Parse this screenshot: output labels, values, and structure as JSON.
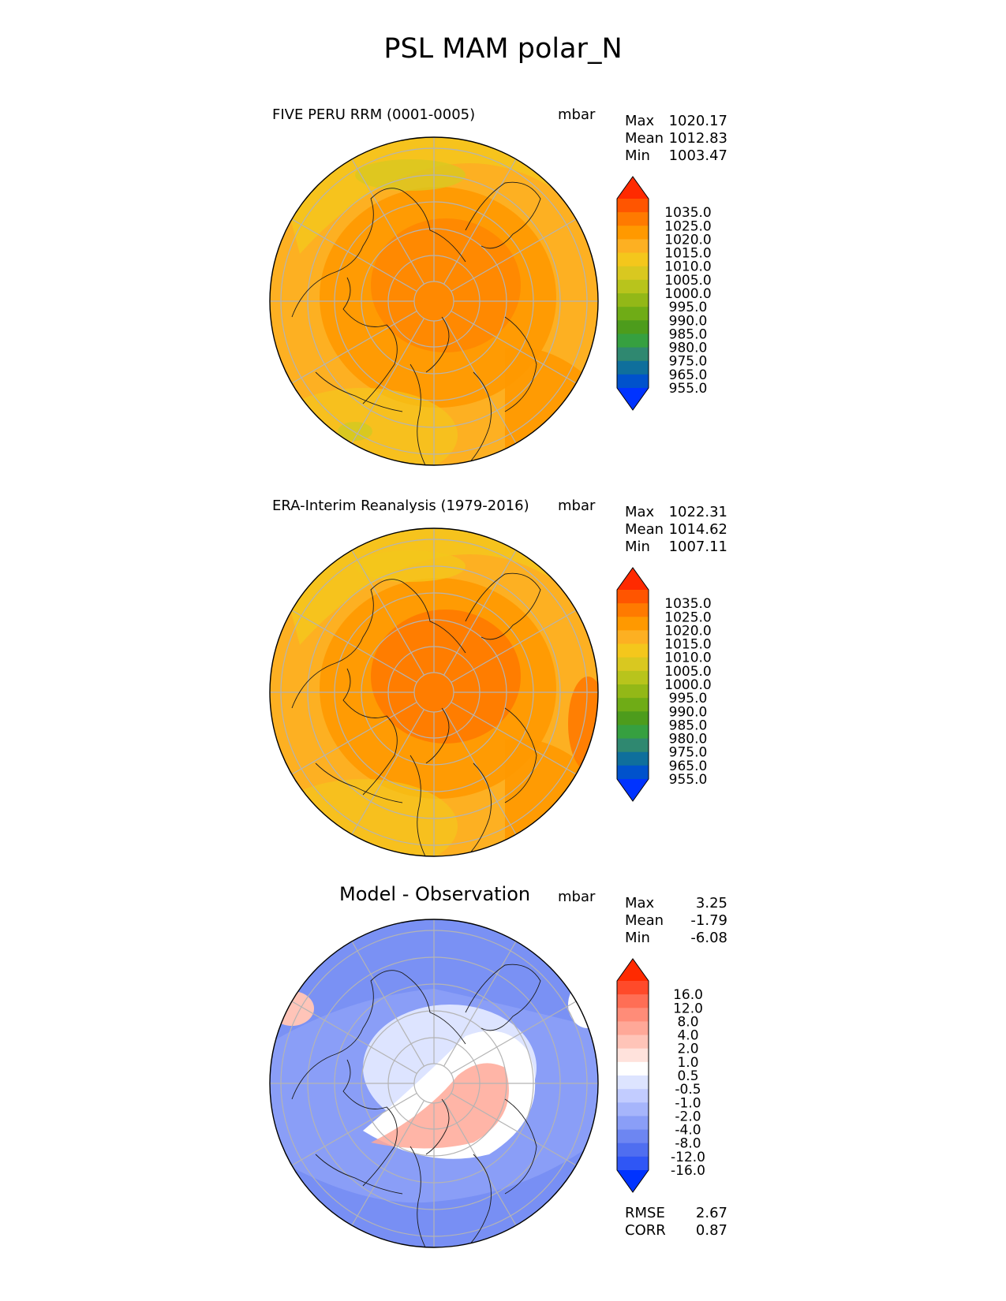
{
  "title": "PSL MAM polar_N",
  "panels": [
    {
      "title": "FIVE PERU RRM (0001-0005)",
      "units": "mbar",
      "stats": [
        {
          "label": "Max",
          "value": "1020.17"
        },
        {
          "label": "Mean",
          "value": "1012.83"
        },
        {
          "label": "Min",
          "value": "1003.47"
        }
      ],
      "colorbar": {
        "labels": [
          "1035.0",
          "1025.0",
          "1020.0",
          "1015.0",
          "1010.0",
          "1005.0",
          "1000.0",
          "995.0",
          "990.0",
          "985.0",
          "980.0",
          "975.0",
          "965.0",
          "955.0"
        ],
        "colors": [
          "#ff2a00",
          "#ff5500",
          "#ff7a00",
          "#ff9900",
          "#fdb022",
          "#f4c71c",
          "#d9c820",
          "#b8c41c",
          "#93b817",
          "#6fac16",
          "#4d9c1c",
          "#36a040",
          "#2f8870",
          "#0f6f9c",
          "#0052cc",
          "#0033ff"
        ]
      },
      "map_colors": {
        "base": "#fdb022",
        "mid": "#ff9900",
        "core": "#ff7a00",
        "warm": "#f4c71c",
        "cool": "#d9c820"
      }
    },
    {
      "title": "ERA-Interim Reanalysis (1979-2016)",
      "units": "mbar",
      "stats": [
        {
          "label": "Max",
          "value": "1022.31"
        },
        {
          "label": "Mean",
          "value": "1014.62"
        },
        {
          "label": "Min",
          "value": "1007.11"
        }
      ],
      "colorbar": {
        "labels": [
          "1035.0",
          "1025.0",
          "1020.0",
          "1015.0",
          "1010.0",
          "1005.0",
          "1000.0",
          "995.0",
          "990.0",
          "985.0",
          "980.0",
          "975.0",
          "965.0",
          "955.0"
        ],
        "colors": [
          "#ff2a00",
          "#ff5500",
          "#ff7a00",
          "#ff9900",
          "#fdb022",
          "#f4c71c",
          "#d9c820",
          "#b8c41c",
          "#93b817",
          "#6fac16",
          "#4d9c1c",
          "#36a040",
          "#2f8870",
          "#0f6f9c",
          "#0052cc",
          "#0033ff"
        ]
      },
      "map_colors": {
        "base": "#fdb022",
        "mid": "#ff9900",
        "core": "#ff7a00",
        "warm": "#f4c71c",
        "cool": "#f4c71c"
      }
    },
    {
      "title": "Model - Observation",
      "units": "mbar",
      "stats": [
        {
          "label": "Max",
          "value": "3.25"
        },
        {
          "label": "Mean",
          "value": "-1.79"
        },
        {
          "label": "Min",
          "value": "-6.08"
        }
      ],
      "colorbar": {
        "labels": [
          "16.0",
          "12.0",
          "8.0",
          "4.0",
          "2.0",
          "1.0",
          "0.5",
          "-0.5",
          "-1.0",
          "-2.0",
          "-4.0",
          "-8.0",
          "-12.0",
          "-16.0"
        ],
        "colors": [
          "#ff2a00",
          "#ff4a2a",
          "#ff6e55",
          "#ff8c78",
          "#ffa898",
          "#ffc4b8",
          "#ffe2dc",
          "#ffffff",
          "#dde4ff",
          "#c2ccff",
          "#a6b5fb",
          "#8a9ef7",
          "#6d86f2",
          "#4f6ef0",
          "#2f56f5",
          "#0033ff"
        ]
      },
      "map_colors": {
        "base": "#8a9ef7",
        "mid": "#a6b5fb",
        "core": "#ffffff",
        "warm": "#ffa898",
        "cool": "#6d86f2"
      }
    }
  ],
  "metrics": [
    {
      "label": "RMSE",
      "value": "2.67"
    },
    {
      "label": "CORR",
      "value": "0.87"
    }
  ],
  "chart_data": [
    {
      "type": "heatmap",
      "title": "FIVE PERU RRM (0001-0005)",
      "variable": "PSL",
      "season": "MAM",
      "region": "polar_N",
      "units": "mbar",
      "max": 1020.17,
      "mean": 1012.83,
      "min": 1003.47,
      "levels": [
        955,
        965,
        975,
        980,
        985,
        990,
        995,
        1000,
        1005,
        1010,
        1015,
        1020,
        1025,
        1035
      ]
    },
    {
      "type": "heatmap",
      "title": "ERA-Interim Reanalysis (1979-2016)",
      "variable": "PSL",
      "units": "mbar",
      "max": 1022.31,
      "mean": 1014.62,
      "min": 1007.11,
      "levels": [
        955,
        965,
        975,
        980,
        985,
        990,
        995,
        1000,
        1005,
        1010,
        1015,
        1020,
        1025,
        1035
      ]
    },
    {
      "type": "heatmap",
      "title": "Model - Observation",
      "units": "mbar",
      "max": 3.25,
      "mean": -1.79,
      "min": -6.08,
      "rmse": 2.67,
      "corr": 0.87,
      "levels": [
        -16,
        -12,
        -8,
        -4,
        -2,
        -1,
        -0.5,
        0.5,
        1,
        2,
        4,
        8,
        12,
        16
      ]
    }
  ]
}
